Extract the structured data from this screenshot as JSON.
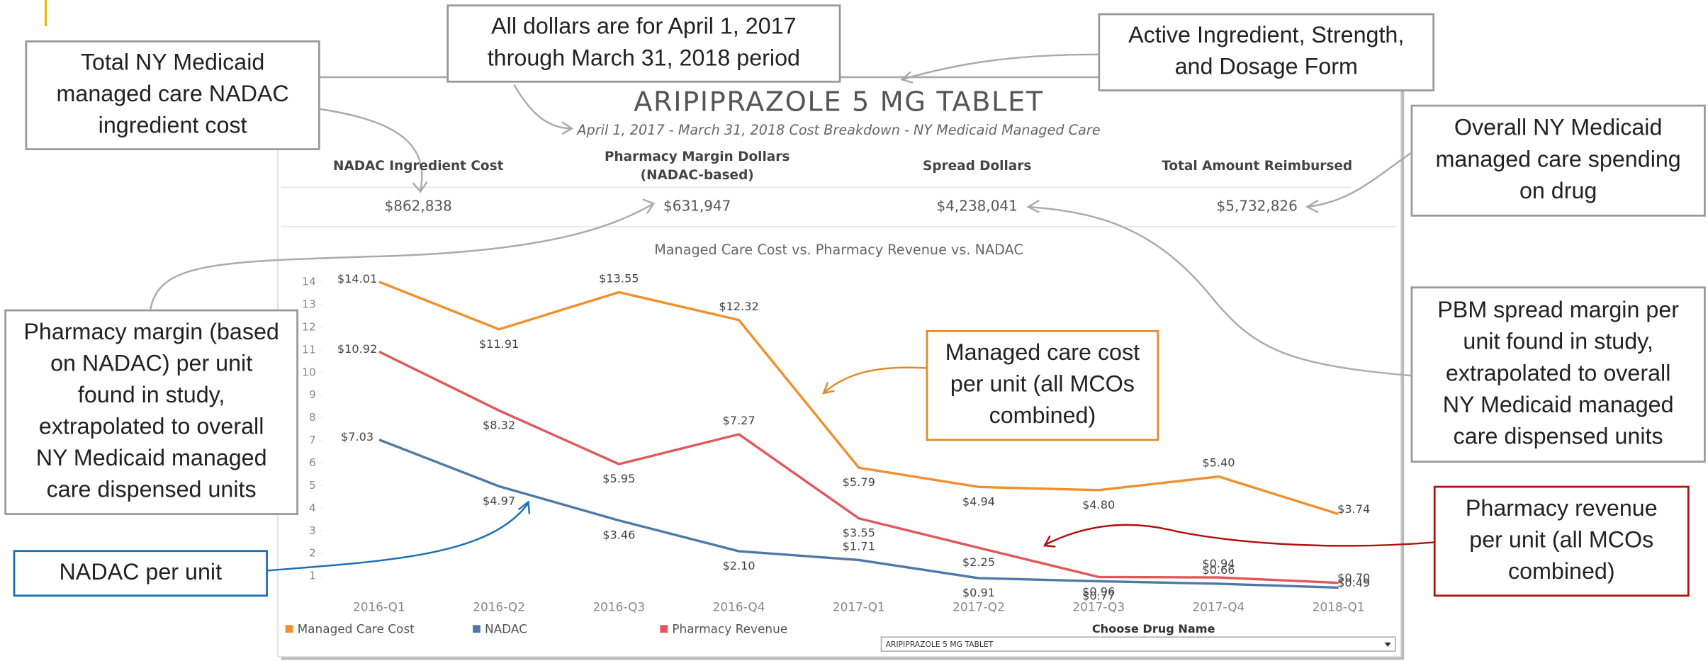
{
  "chart_data": {
    "type": "line",
    "title": "Managed Care Cost vs. Pharmacy Revenue vs. NADAC",
    "categories": [
      "2016-Q1",
      "2016-Q2",
      "2016-Q3",
      "2016-Q4",
      "2017-Q1",
      "2017-Q2",
      "2017-Q3",
      "2017-Q4",
      "2018-Q1"
    ],
    "series": [
      {
        "name": "Managed Care Cost",
        "color": "#f28e2b",
        "values": [
          14.01,
          11.91,
          13.55,
          12.32,
          5.79,
          4.94,
          4.8,
          5.4,
          3.74
        ],
        "value_labels": [
          "$14.01",
          "$11.91",
          "$13.55",
          "$12.32",
          "$5.79",
          "$4.94",
          "$4.80",
          "$5.40",
          "$3.74"
        ]
      },
      {
        "name": "NADAC",
        "color": "#4e79a7",
        "values": [
          7.03,
          4.97,
          3.46,
          2.1,
          1.71,
          0.91,
          0.77,
          0.66,
          0.49
        ],
        "value_labels": [
          "$7.03",
          "$4.97",
          "$3.46",
          "$2.10",
          "$1.71",
          "$0.91",
          "$0.77",
          "$0.66",
          "$0.49"
        ]
      },
      {
        "name": "Pharmacy Revenue",
        "color": "#e15759",
        "values": [
          10.92,
          8.32,
          5.95,
          7.27,
          3.55,
          2.25,
          0.96,
          0.94,
          0.7
        ],
        "value_labels": [
          "$10.92",
          "$8.32",
          "$5.95",
          "$7.27",
          "$3.55",
          "$2.25",
          "$0.96",
          "$0.94",
          "$0.70"
        ]
      }
    ],
    "ylim": [
      0,
      14.5
    ],
    "yticks": [
      1,
      2,
      3,
      4,
      5,
      6,
      7,
      8,
      9,
      10,
      11,
      12,
      13,
      14
    ],
    "grid": false,
    "legend": "bottom"
  },
  "dashboard": {
    "title": "ARIPIPRAZOLE 5 MG TABLET",
    "subtitle": "April 1, 2017 - March 31, 2018 Cost Breakdown - NY Medicaid Managed Care",
    "kpis": [
      {
        "label": [
          "NADAC Ingredient Cost"
        ],
        "value": "$862,838"
      },
      {
        "label": [
          "Pharmacy Margin Dollars",
          "(NADAC-based)"
        ],
        "value": "$631,947"
      },
      {
        "label": [
          "Spread Dollars"
        ],
        "value": "$4,238,041"
      },
      {
        "label": [
          "Total Amount Reimbursed"
        ],
        "value": "$5,732,826"
      }
    ],
    "filter_label": "Choose Drug Name",
    "filter_value": "ARIPIPRAZOLE 5 MG TABLET"
  },
  "callouts": [
    {
      "lines": [
        "Total NY Medicaid",
        "managed care NADAC",
        "ingredient cost"
      ]
    },
    {
      "lines": [
        "All dollars are for April 1, 2017",
        "through March 31, 2018 period"
      ]
    },
    {
      "lines": [
        "Active Ingredient, Strength,",
        "and Dosage Form"
      ]
    },
    {
      "lines": [
        "Overall NY Medicaid",
        "managed care spending",
        "on drug"
      ]
    },
    {
      "lines": [
        "Pharmacy margin (based",
        "on NADAC) per unit",
        "found in study,",
        "extrapolated to overall",
        "NY Medicaid managed",
        "care dispensed units"
      ]
    },
    {
      "lines": [
        "PBM spread margin per",
        "unit found in study,",
        "extrapolated to overall",
        "NY Medicaid managed",
        "care dispensed units"
      ]
    },
    {
      "lines": [
        "Managed care cost",
        "per unit (all MCOs",
        "combined)"
      ]
    },
    {
      "lines": [
        "Pharmacy revenue",
        "per unit (all MCOs",
        "combined)"
      ]
    },
    {
      "lines": [
        "NADAC per unit"
      ]
    }
  ]
}
